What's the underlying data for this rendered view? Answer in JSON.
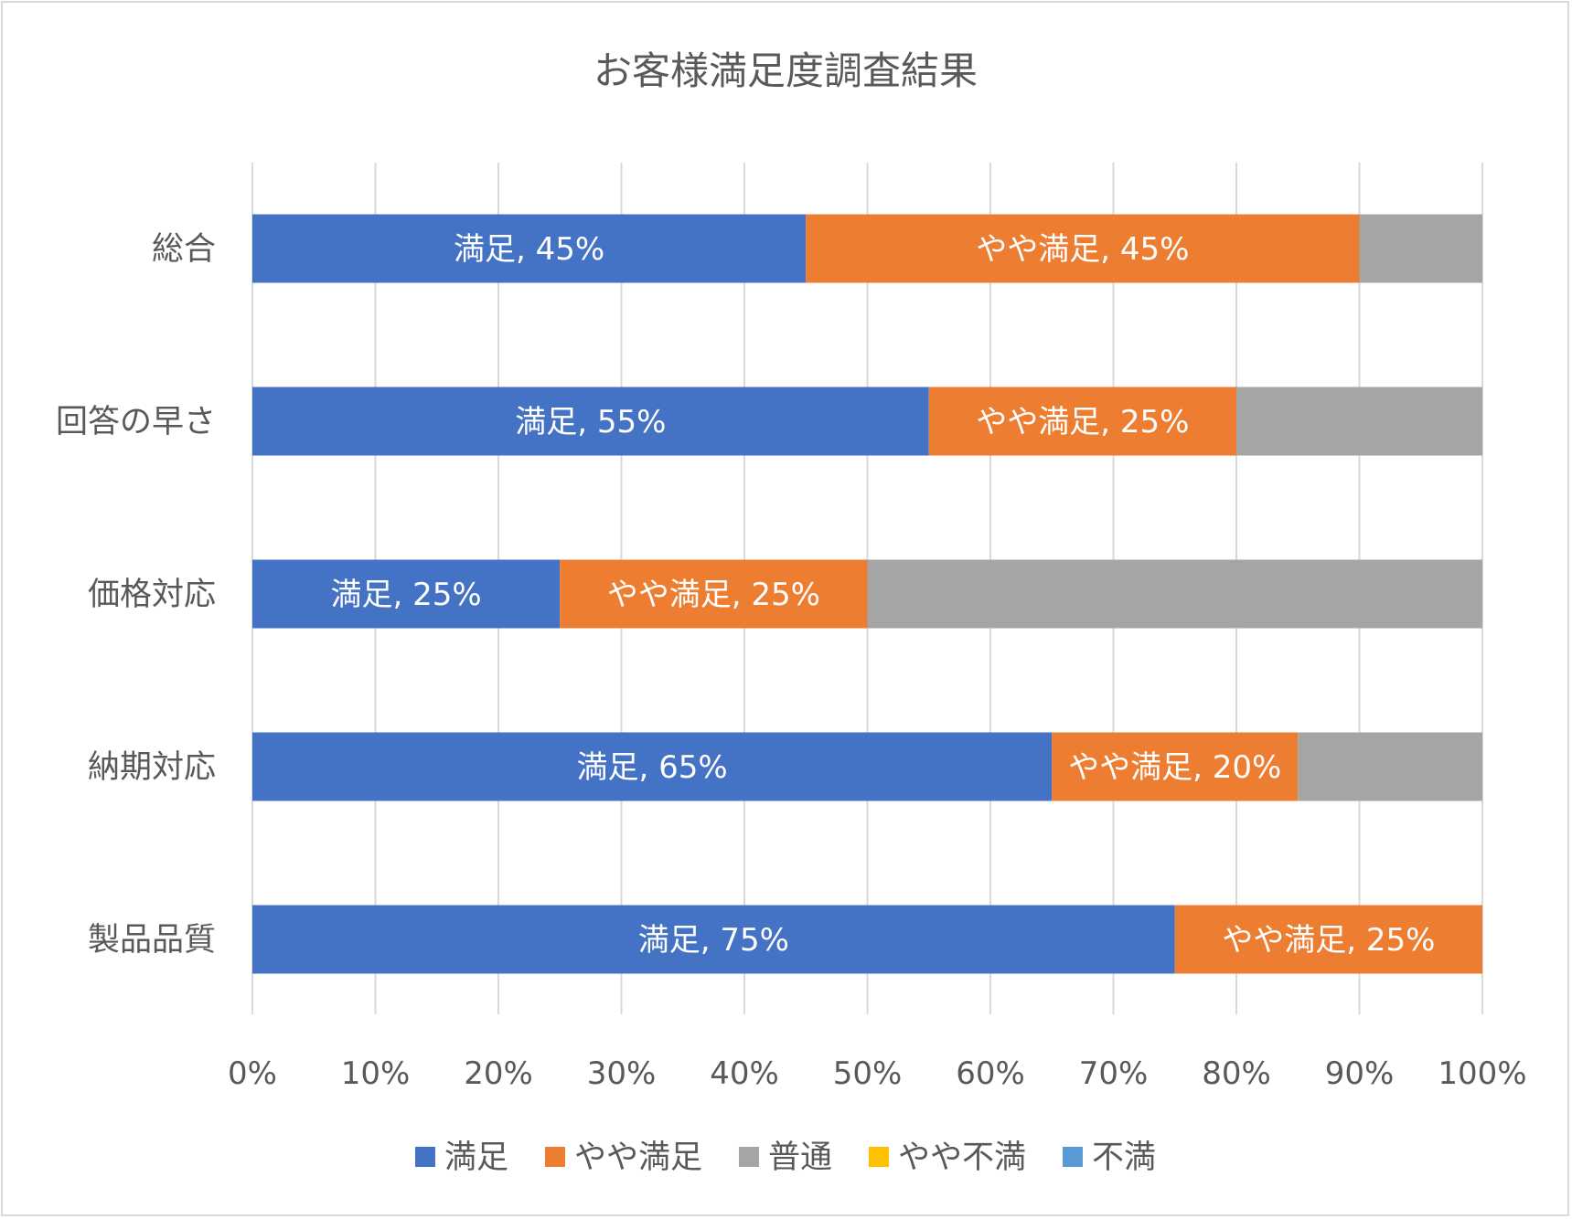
{
  "chart_data": {
    "type": "bar",
    "orientation": "horizontal",
    "stacked": "percent",
    "title": "お客様満足度調査結果",
    "categories": [
      "総合",
      "回答の早さ",
      "価格対応",
      "納期対応",
      "製品品質"
    ],
    "series": [
      {
        "name": "満足",
        "color": "#4472c4",
        "values": [
          45,
          55,
          25,
          65,
          75
        ],
        "labels": [
          "満足, 45%",
          "満足, 55%",
          "満足, 25%",
          "満足, 65%",
          "満足, 75%"
        ]
      },
      {
        "name": "やや満足",
        "color": "#ed7d31",
        "values": [
          45,
          25,
          25,
          20,
          25
        ],
        "labels": [
          "やや満足, 45%",
          "やや満足, 25%",
          "やや満足, 25%",
          "やや満足, 20%",
          "やや満足, 25%"
        ]
      },
      {
        "name": "普通",
        "color": "#a5a5a5",
        "values": [
          10,
          20,
          50,
          15,
          0
        ],
        "labels": [
          "",
          "",
          "",
          "",
          ""
        ]
      },
      {
        "name": "やや不満",
        "color": "#ffc000",
        "values": [
          0,
          0,
          0,
          0,
          0
        ],
        "labels": [
          "",
          "",
          "",
          "",
          ""
        ]
      },
      {
        "name": "不満",
        "color": "#5b9bd5",
        "values": [
          0,
          0,
          0,
          0,
          0
        ],
        "labels": [
          "",
          "",
          "",
          "",
          ""
        ]
      }
    ],
    "xlim": [
      0,
      100
    ],
    "xticks": [
      "0%",
      "10%",
      "20%",
      "30%",
      "40%",
      "50%",
      "60%",
      "70%",
      "80%",
      "90%",
      "100%"
    ],
    "grid": true,
    "legend_position": "bottom"
  }
}
